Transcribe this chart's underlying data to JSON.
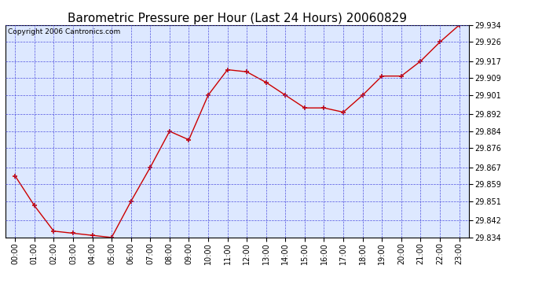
{
  "title": "Barometric Pressure per Hour (Last 24 Hours) 20060829",
  "copyright": "Copyright 2006 Cantronics.com",
  "hours": [
    "00:00",
    "01:00",
    "02:00",
    "03:00",
    "04:00",
    "05:00",
    "06:00",
    "07:00",
    "08:00",
    "09:00",
    "10:00",
    "11:00",
    "12:00",
    "13:00",
    "14:00",
    "15:00",
    "16:00",
    "17:00",
    "18:00",
    "19:00",
    "20:00",
    "21:00",
    "22:00",
    "23:00"
  ],
  "values": [
    29.863,
    29.849,
    29.837,
    29.836,
    29.835,
    29.834,
    29.851,
    29.867,
    29.884,
    29.88,
    29.901,
    29.913,
    29.912,
    29.907,
    29.901,
    29.895,
    29.895,
    29.893,
    29.901,
    29.91,
    29.91,
    29.917,
    29.926,
    29.934
  ],
  "ylim_min": 29.834,
  "ylim_max": 29.934,
  "yticks": [
    29.834,
    29.842,
    29.851,
    29.859,
    29.867,
    29.876,
    29.884,
    29.892,
    29.901,
    29.909,
    29.917,
    29.926,
    29.934
  ],
  "line_color": "#cc0000",
  "marker_color": "#cc0000",
  "bg_color": "#ffffff",
  "plot_bg_color": "#dde8ff",
  "grid_color": "#4444dd",
  "title_color": "#000000",
  "border_color": "#000000",
  "title_fontsize": 11,
  "tick_fontsize": 7,
  "copyright_fontsize": 6.5
}
